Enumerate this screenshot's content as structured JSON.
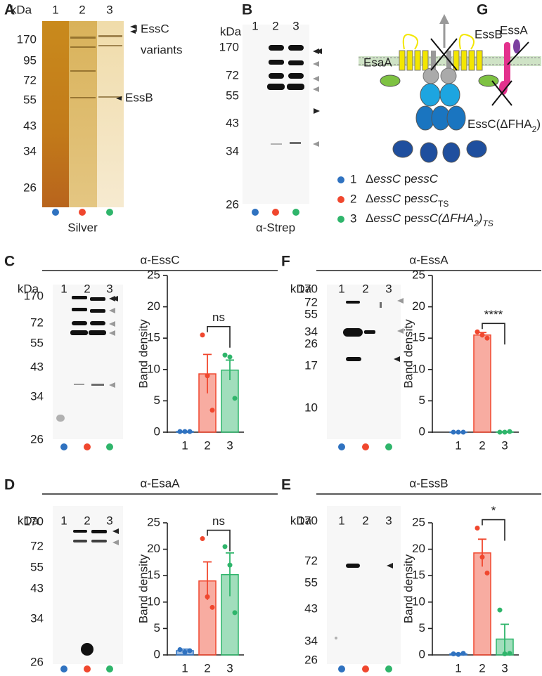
{
  "chart_data": [
    {
      "type": "bar",
      "panel": "C",
      "title": "α-EssC",
      "ylabel": "Band density",
      "categories": [
        "1",
        "2",
        "3"
      ],
      "values": [
        0.1,
        9.3,
        9.9
      ],
      "errors": [
        0.05,
        3.1,
        1.6
      ],
      "points": [
        [
          0.1,
          0.1,
          0.1
        ],
        [
          15.5,
          9,
          3.5
        ],
        [
          12.3,
          12,
          5.4
        ]
      ],
      "colors": [
        "#2f72c0",
        "#f0472e",
        "#2fb56b"
      ],
      "ylim": [
        0,
        25
      ],
      "yticks": [
        0,
        5,
        10,
        15,
        20,
        25
      ],
      "significance": "ns"
    },
    {
      "type": "bar",
      "panel": "F",
      "title": "α-EssA",
      "ylabel": "Band density",
      "categories": [
        "1",
        "2",
        "3"
      ],
      "values": [
        0,
        15.5,
        0.05
      ],
      "errors": [
        0,
        0.4,
        0.05
      ],
      "points": [
        [
          0,
          0,
          0
        ],
        [
          16,
          15.5,
          15
        ],
        [
          0,
          0,
          0.1
        ]
      ],
      "colors": [
        "#2f72c0",
        "#f0472e",
        "#2fb56b"
      ],
      "ylim": [
        0,
        25
      ],
      "yticks": [
        0,
        5,
        10,
        15,
        20,
        25
      ],
      "significance": "****"
    },
    {
      "type": "bar",
      "panel": "D",
      "title": "α-EsaA",
      "ylabel": "Band density",
      "categories": [
        "1",
        "2",
        "3"
      ],
      "values": [
        0.8,
        14,
        15.2
      ],
      "errors": [
        0.3,
        3.6,
        4.1
      ],
      "points": [
        [
          1,
          0.5,
          0.8
        ],
        [
          22,
          11,
          9
        ],
        [
          20.5,
          17,
          8
        ]
      ],
      "colors": [
        "#2f72c0",
        "#f0472e",
        "#2fb56b"
      ],
      "ylim": [
        0,
        25
      ],
      "yticks": [
        0,
        5,
        10,
        15,
        20,
        25
      ],
      "significance": "ns"
    },
    {
      "type": "bar",
      "panel": "E",
      "title": "α-EssB",
      "ylabel": "Band density",
      "categories": [
        "1",
        "2",
        "3"
      ],
      "values": [
        0.2,
        19.3,
        3
      ],
      "errors": [
        0.1,
        2.6,
        2.8
      ],
      "points": [
        [
          0.2,
          0.1,
          0.3
        ],
        [
          24,
          18.5,
          15.5
        ],
        [
          8.5,
          0.2,
          0.3
        ]
      ],
      "colors": [
        "#2f72c0",
        "#f0472e",
        "#2fb56b"
      ],
      "ylim": [
        0,
        25
      ],
      "yticks": [
        0,
        5,
        10,
        15,
        20,
        25
      ],
      "significance": "*"
    }
  ],
  "blots": [
    {
      "panel": "A",
      "unit": "kDa",
      "lanes": [
        "1",
        "2",
        "3"
      ],
      "markers": [
        "170",
        "95",
        "72",
        "55",
        "43",
        "34",
        "26"
      ],
      "annotations": [
        "EssC",
        "variants",
        "EssB"
      ],
      "caption": "Silver"
    },
    {
      "panel": "B",
      "unit": "kDa",
      "lanes": [
        "1",
        "2",
        "3"
      ],
      "markers": [
        "170",
        "72",
        "55",
        "43",
        "34",
        "26"
      ],
      "caption": "α-Strep"
    },
    {
      "unit": "kDa",
      "lanes": [
        "1",
        "2",
        "3"
      ],
      "markers": [
        "170",
        "72",
        "55",
        "43",
        "34",
        "26"
      ]
    },
    {
      "unit": "kDa",
      "lanes": [
        "1",
        "2",
        "3"
      ],
      "markers": [
        "170",
        "72",
        "55",
        "34",
        "26",
        "17",
        "10"
      ]
    },
    {
      "unit": "kDa",
      "lanes": [
        "1",
        "2",
        "3"
      ],
      "markers": [
        "170",
        "72",
        "55",
        "43",
        "34",
        "26"
      ]
    },
    {
      "unit": "kDa",
      "lanes": [
        "1",
        "2",
        "3"
      ],
      "markers": [
        "170",
        "72",
        "55",
        "43",
        "34",
        "26"
      ]
    }
  ],
  "diagram": {
    "panel": "G",
    "labels": [
      "EsaA",
      "EssB",
      "EssA"
    ],
    "essc": [
      "EssC(ΔFHA",
      "2",
      ")"
    ],
    "legend": [
      {
        "number": "1",
        "parts": [
          "Δ",
          "essC",
          " p",
          "essC"
        ]
      },
      {
        "number": "2",
        "parts": [
          "Δ",
          "essC",
          " p",
          "essC",
          "TS"
        ]
      },
      {
        "number": "3",
        "parts": [
          "Δ",
          "essC",
          " p",
          "essC(ΔFHA",
          "2",
          ")",
          "TS"
        ]
      }
    ]
  }
}
